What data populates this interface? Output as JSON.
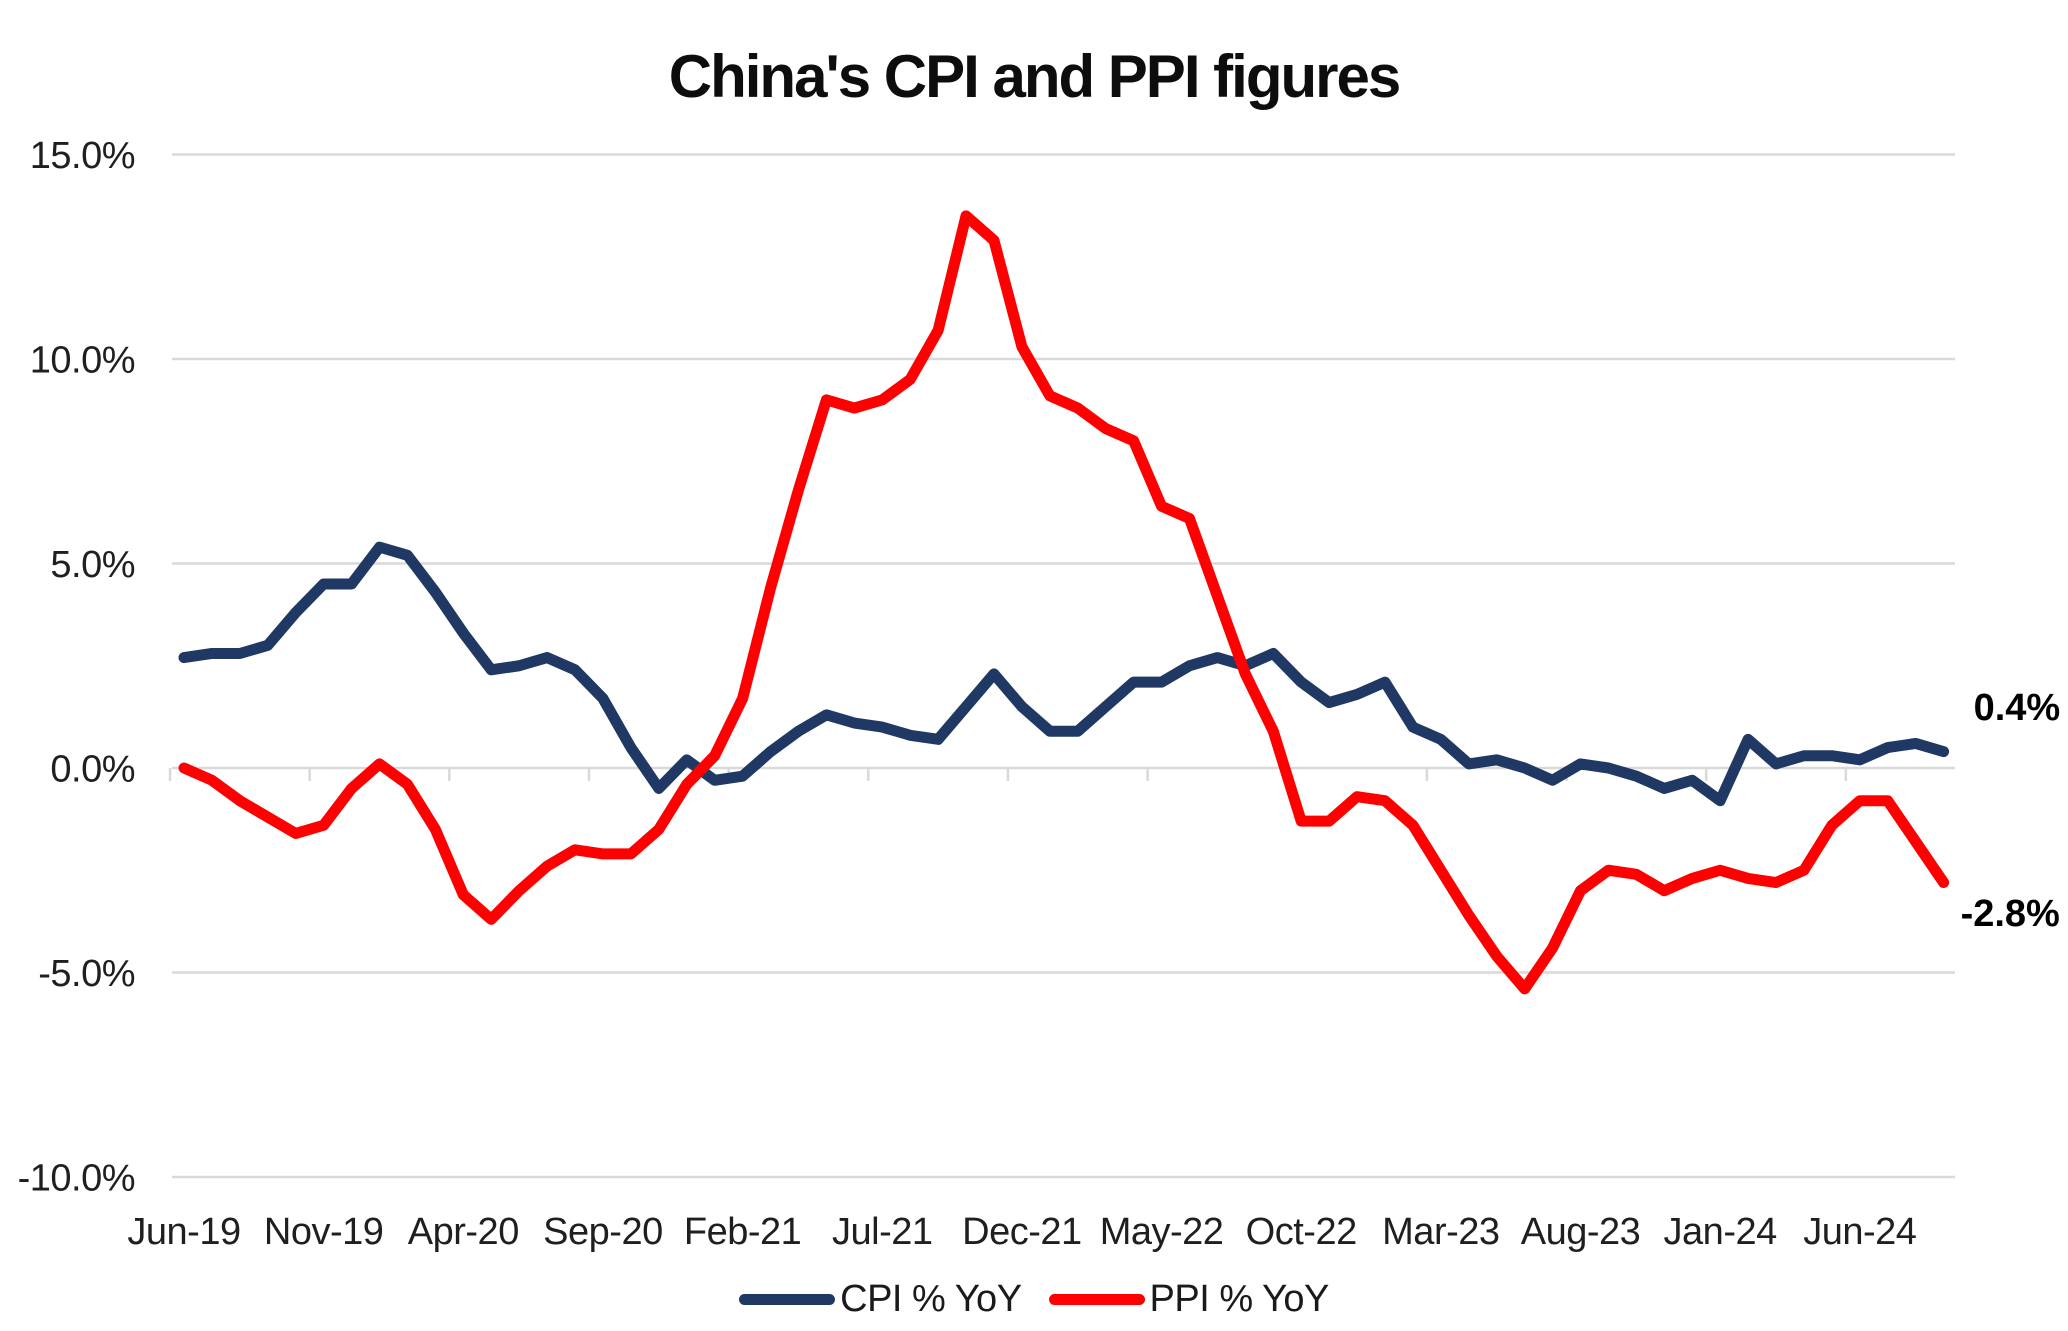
{
  "title": "China's CPI and PPI figures",
  "colors": {
    "cpi": "#1F3864",
    "ppi": "#FF0000",
    "gridline": "#D9D9D9",
    "axis_text": "#1f1f1f",
    "title_text": "#0d0d0d",
    "end_label_text": "#000000"
  },
  "chart_data": {
    "type": "line",
    "title": "China's CPI and PPI figures",
    "x": [
      "Jun-19",
      "Jul-19",
      "Aug-19",
      "Sep-19",
      "Oct-19",
      "Nov-19",
      "Dec-19",
      "Jan-20",
      "Feb-20",
      "Mar-20",
      "Apr-20",
      "May-20",
      "Jun-20",
      "Jul-20",
      "Aug-20",
      "Sep-20",
      "Oct-20",
      "Nov-20",
      "Dec-20",
      "Jan-21",
      "Feb-21",
      "Mar-21",
      "Apr-21",
      "May-21",
      "Jun-21",
      "Jul-21",
      "Aug-21",
      "Sep-21",
      "Oct-21",
      "Nov-21",
      "Dec-21",
      "Jan-22",
      "Feb-22",
      "Mar-22",
      "Apr-22",
      "May-22",
      "Jun-22",
      "Jul-22",
      "Aug-22",
      "Sep-22",
      "Oct-22",
      "Nov-22",
      "Dec-22",
      "Jan-23",
      "Feb-23",
      "Mar-23",
      "Apr-23",
      "May-23",
      "Jun-23",
      "Jul-23",
      "Aug-23",
      "Sep-23",
      "Oct-23",
      "Nov-23",
      "Dec-23",
      "Jan-24",
      "Feb-24",
      "Mar-24",
      "Apr-24",
      "May-24",
      "Jun-24",
      "Jul-24",
      "Aug-24",
      "Sep-24"
    ],
    "series": [
      {
        "name": "CPI % YoY",
        "color": "#1F3864",
        "values": [
          2.7,
          2.8,
          2.8,
          3.0,
          3.8,
          4.5,
          4.5,
          5.4,
          5.2,
          4.3,
          3.3,
          2.4,
          2.5,
          2.7,
          2.4,
          1.7,
          0.5,
          -0.5,
          0.2,
          -0.3,
          -0.2,
          0.4,
          0.9,
          1.3,
          1.1,
          1.0,
          0.8,
          0.7,
          1.5,
          2.3,
          1.5,
          0.9,
          0.9,
          1.5,
          2.1,
          2.1,
          2.5,
          2.7,
          2.5,
          2.8,
          2.1,
          1.6,
          1.8,
          2.1,
          1.0,
          0.7,
          0.1,
          0.2,
          0.0,
          -0.3,
          0.1,
          0.0,
          -0.2,
          -0.5,
          -0.3,
          -0.8,
          0.7,
          0.1,
          0.3,
          0.3,
          0.2,
          0.5,
          0.6,
          0.4
        ]
      },
      {
        "name": "PPI % YoY",
        "color": "#FF0000",
        "values": [
          0.0,
          -0.3,
          -0.8,
          -1.2,
          -1.6,
          -1.4,
          -0.5,
          0.1,
          -0.4,
          -1.5,
          -3.1,
          -3.7,
          -3.0,
          -2.4,
          -2.0,
          -2.1,
          -2.1,
          -1.5,
          -0.4,
          0.3,
          1.7,
          4.4,
          6.8,
          9.0,
          8.8,
          9.0,
          9.5,
          10.7,
          13.5,
          12.9,
          10.3,
          9.1,
          8.8,
          8.3,
          8.0,
          6.4,
          6.1,
          4.2,
          2.3,
          0.9,
          -1.3,
          -1.3,
          -0.7,
          -0.8,
          -1.4,
          -2.5,
          -3.6,
          -4.6,
          -5.4,
          -4.4,
          -3.0,
          -2.5,
          -2.6,
          -3.0,
          -2.7,
          -2.5,
          -2.7,
          -2.8,
          -2.5,
          -1.4,
          -0.8,
          -0.8,
          -1.8,
          -2.8
        ]
      }
    ],
    "x_tick_labels": [
      "Jun-19",
      "Nov-19",
      "Apr-20",
      "Sep-20",
      "Feb-21",
      "Jul-21",
      "Dec-21",
      "May-22",
      "Oct-22",
      "Mar-23",
      "Aug-23",
      "Jan-24",
      "Jun-24"
    ],
    "x_tick_interval": 5,
    "y_ticks": [
      15,
      10,
      5,
      0,
      -5,
      -10
    ],
    "y_tick_suffix": "%",
    "ylim": [
      -10,
      15
    ],
    "grid": "horizontal",
    "legend_position": "bottom",
    "end_labels": [
      {
        "series": "CPI % YoY",
        "text": "0.4%"
      },
      {
        "series": "PPI % YoY",
        "text": "-2.8%"
      }
    ]
  },
  "legend": {
    "items": [
      {
        "label": "CPI % YoY",
        "color": "#1F3864"
      },
      {
        "label": "PPI % YoY",
        "color": "#FF0000"
      }
    ]
  }
}
